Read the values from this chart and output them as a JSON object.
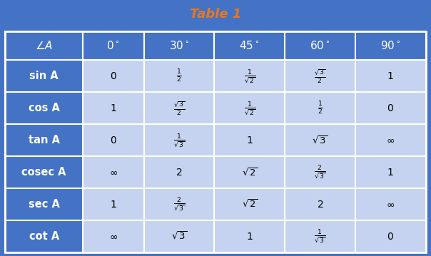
{
  "title": "Table 1",
  "title_color": "#E87722",
  "title_fontsize": 13,
  "header_bg": "#4472C4",
  "header_text_color": "#FFFFFF",
  "row_label_bg": "#4472C4",
  "row_label_text_color": "#FFFFFF",
  "cell_bg_light": "#C5D3F0",
  "cell_bg_medium": "#A8B8E8",
  "outer_bg": "#4472C4",
  "col_headers": [
    "∠A",
    "0°",
    "30°",
    "45°",
    "60°",
    "90°"
  ],
  "row_labels": [
    "sin A",
    "cos A",
    "tan A",
    "cosec A",
    "sec A",
    "cot A"
  ],
  "cells": [
    [
      "0",
      "\\frac{1}{2}",
      "\\frac{1}{\\sqrt{2}}",
      "\\frac{\\sqrt{3}}{2}",
      "1"
    ],
    [
      "1",
      "\\frac{\\sqrt{3}}{2}",
      "\\frac{1}{\\sqrt{2}}",
      "\\frac{1}{2}",
      "0"
    ],
    [
      "0",
      "\\frac{1}{\\sqrt{3}}",
      "1",
      "\\sqrt{3}",
      "\\infty"
    ],
    [
      "\\infty",
      "2",
      "\\sqrt{2}",
      "\\frac{2}{\\sqrt{3}}",
      "1"
    ],
    [
      "1",
      "\\frac{2}{\\sqrt{3}}",
      "\\sqrt{2}",
      "2",
      "\\infty"
    ],
    [
      "\\infty",
      "\\sqrt{3}",
      "1",
      "\\frac{1}{\\sqrt{3}}",
      "0"
    ]
  ],
  "figsize": [
    6.04,
    3.59
  ],
  "dpi": 100
}
